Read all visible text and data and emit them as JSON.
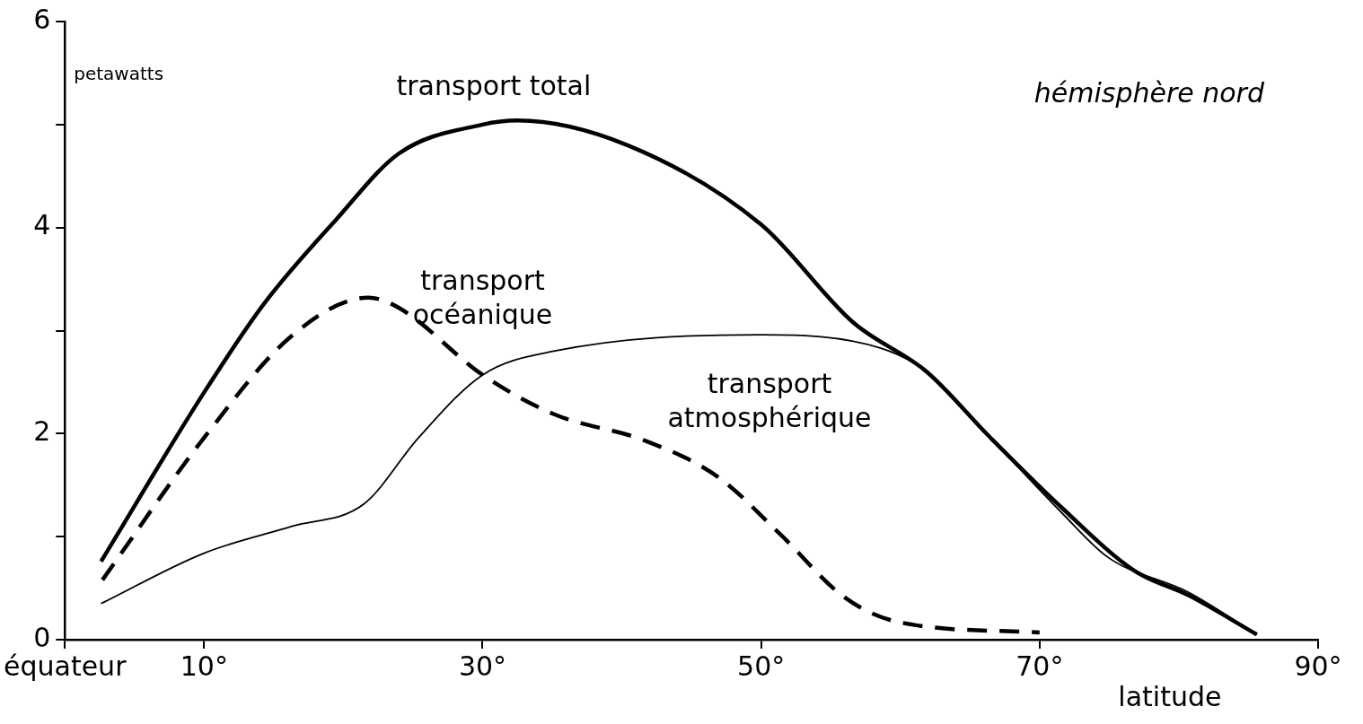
{
  "chart_data": {
    "type": "line",
    "ylabel": "petawatts",
    "xlabel": "latitude",
    "xlim": [
      0,
      90
    ],
    "xticks": [
      {
        "value": 0,
        "label": "équateur"
      },
      {
        "value": 10,
        "label": "10°"
      },
      {
        "value": 30,
        "label": "30°"
      },
      {
        "value": 50,
        "label": "50°"
      },
      {
        "value": 70,
        "label": "70°"
      },
      {
        "value": 90,
        "label": "90°"
      }
    ],
    "ylim": [
      0,
      6
    ],
    "yticks": [
      0,
      {
        "value": 1,
        "label": null
      },
      2,
      {
        "value": 3,
        "label": null
      },
      4,
      {
        "value": 5,
        "label": null
      },
      6
    ],
    "grid": false,
    "legend": false,
    "marker": "none",
    "series": [
      {
        "name": "transport total",
        "color": "#000000",
        "line_style": "solid",
        "x": [
          2.6,
          10,
          14.3,
          19.5,
          24,
          30,
          32.5,
          40.4,
          50,
          56.6,
          61.9,
          66.4,
          71.6,
          76.8,
          80.7,
          85.6
        ],
        "values": [
          0.76,
          2.4,
          3.26,
          4.08,
          4.72,
          5.0,
          5.04,
          4.8,
          4.03,
          3.08,
          2.6,
          1.97,
          1.28,
          0.67,
          0.43,
          0.05
        ]
      },
      {
        "name": "transport océanique",
        "color": "#000000",
        "line_style": "dashed",
        "x": [
          2.7,
          10,
          16.3,
          21.8,
          24,
          30,
          35.1,
          41.7,
          46.9,
          51.4,
          56,
          59.9,
          70
        ],
        "values": [
          0.58,
          1.96,
          2.95,
          3.32,
          3.22,
          2.57,
          2.19,
          1.93,
          1.58,
          1.02,
          0.41,
          0.17,
          0.07
        ]
      },
      {
        "name": "transport atmosphérique",
        "color": "#000000",
        "line_style": "solid",
        "x": [
          2.6,
          10,
          16.3,
          21.5,
          25.4,
          30,
          35.1,
          50,
          58.6,
          61.9,
          66.4,
          71.6,
          74.9,
          80.7,
          85.6
        ],
        "values": [
          0.35,
          0.84,
          1.1,
          1.32,
          1.96,
          2.57,
          2.8,
          2.96,
          2.83,
          2.6,
          1.97,
          1.23,
          0.8,
          0.46,
          0.05
        ]
      }
    ],
    "annotations": [
      "hémisphère nord"
    ]
  }
}
